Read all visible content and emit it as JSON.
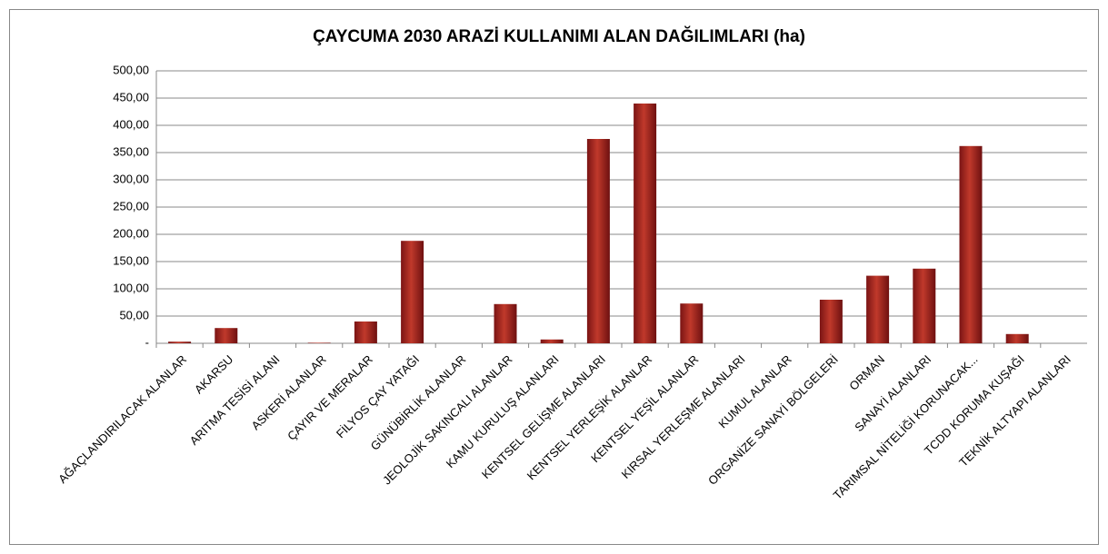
{
  "chart_data": {
    "type": "bar",
    "title": "ÇAYCUMA 2030 ARAZİ KULLANIMI  ALAN DAĞILIMLARI (ha)",
    "categories": [
      "AĞAÇLANDIRILACAK ALANLAR",
      "AKARSU",
      "ARITMA TESİSİ ALANI",
      "ASKERİ ALANLAR",
      "ÇAYIR VE MERALAR",
      "FİLYOS ÇAY YATAĞI",
      "GÜNÜBİRLİK ALANLAR",
      "JEOLOJİK SAKINCALI ALANLAR",
      "KAMU KURULUŞ ALANLARI",
      "KENTSEL GELİŞME ALANLARI",
      "KENTSEL YERLEŞİK ALANLAR",
      "KENTSEL YEŞİL ALANLAR",
      "KIRSAL YERLEŞME ALANLARI",
      "KUMUL ALANLAR",
      "ORGANİZE SANAYİ BÖLGELERİ",
      "ORMAN",
      "SANAYİ ALANLARI",
      "TARIMSAL NİTELİĞİ KORUNACAK...",
      "TCDD KORUMA KUŞAĞI",
      "TEKNİK ALTYAPI ALANLARI"
    ],
    "values": [
      3,
      28,
      0,
      1,
      40,
      188,
      0,
      72,
      7,
      375,
      440,
      73,
      0,
      0,
      80,
      124,
      137,
      362,
      17,
      0
    ],
    "color": "#c0392b",
    "ylim": [
      0,
      500
    ],
    "yticks": [
      {
        "value": 0,
        "label": "-"
      },
      {
        "value": 50,
        "label": "50,00"
      },
      {
        "value": 100,
        "label": "100,00"
      },
      {
        "value": 150,
        "label": "150,00"
      },
      {
        "value": 200,
        "label": "200,00"
      },
      {
        "value": 250,
        "label": "250,00"
      },
      {
        "value": 300,
        "label": "300,00"
      },
      {
        "value": 350,
        "label": "350,00"
      },
      {
        "value": 400,
        "label": "400,00"
      },
      {
        "value": 450,
        "label": "450,00"
      },
      {
        "value": 500,
        "label": "500,00"
      }
    ],
    "grid": true
  }
}
